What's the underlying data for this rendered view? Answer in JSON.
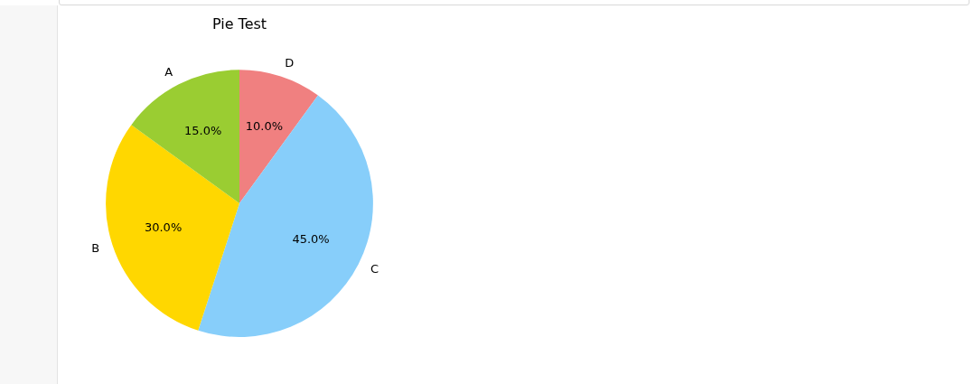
{
  "chart_data": {
    "type": "pie",
    "title": "Pie Test",
    "categories": [
      "A",
      "B",
      "C",
      "D"
    ],
    "values": [
      15,
      30,
      45,
      10
    ],
    "colors": [
      "#9acd32",
      "#ffd700",
      "#87cefa",
      "#f08080"
    ],
    "value_labels": [
      "15.0%",
      "30.0%",
      "45.0%",
      "10.0%"
    ]
  }
}
